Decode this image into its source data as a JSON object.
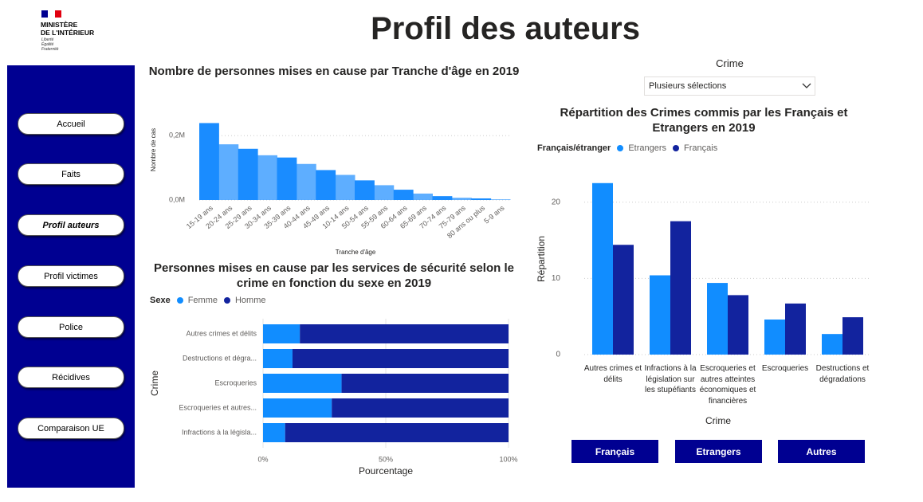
{
  "logo": {
    "line1": "MINISTÈRE",
    "line2": "DE L'INTÉRIEUR",
    "motto": [
      "Liberté",
      "Égalité",
      "Fraternité"
    ]
  },
  "header": {
    "title": "Profil des auteurs"
  },
  "nav": {
    "items": [
      "Accueil",
      "Faits",
      "Profil auteurs",
      "Profil victimes",
      "Police",
      "Récidives",
      "Comparaison UE"
    ],
    "active": 2
  },
  "slicer": {
    "label": "Crime",
    "value": "Plusieurs sélections"
  },
  "buttons": [
    "Français",
    "Etrangers",
    "Autres"
  ],
  "chart_data": [
    {
      "type": "area",
      "title": "Nombre de personnes mises en cause par Tranche d'âge en 2019",
      "x_label": "Tranche d'âge",
      "y_label": "Nombre de cas",
      "categories": [
        "15-19 ans",
        "20-24 ans",
        "25-29 ans",
        "30-34 ans",
        "35-39 ans",
        "40-44 ans",
        "45-49 ans",
        "10-14 ans",
        "50-54 ans",
        "55-59 ans",
        "60-64 ans",
        "65-69 ans",
        "70-74 ans",
        "75-79 ans",
        "80 ans ou plus",
        "5-9 ans"
      ],
      "values": [
        239000,
        173000,
        159000,
        139000,
        132000,
        112000,
        93000,
        78000,
        61000,
        46000,
        32000,
        20000,
        12000,
        7000,
        5000,
        2000
      ],
      "color": "#1a8cff",
      "ylim": [
        0,
        250000
      ],
      "yticks": [
        {
          "value": 0,
          "label": "0,0M"
        },
        {
          "value": 200000,
          "label": "0,2M"
        }
      ],
      "grid": true
    },
    {
      "type": "hbar_stacked",
      "title": "Personnes mises en cause par les services de sécurité selon le crime en fonction du sexe en 2019",
      "legend_title": "Sexe",
      "x_label": "Pourcentage",
      "y_label": "Crime",
      "categories": [
        "Autres crimes et délits",
        "Destructions et dégra...",
        "Escroqueries",
        "Escroqueries et autres...",
        "Infractions à la législa..."
      ],
      "series": [
        {
          "name": "Femme",
          "color": "#118dff",
          "values": [
            15,
            12,
            32,
            28,
            9
          ]
        },
        {
          "name": "Homme",
          "color": "#12239e",
          "values": [
            85,
            88,
            68,
            72,
            91
          ]
        }
      ],
      "xlim": [
        0,
        100
      ],
      "xticks": [
        {
          "value": 0,
          "label": "0%"
        },
        {
          "value": 50,
          "label": "50%"
        },
        {
          "value": 100,
          "label": "100%"
        }
      ],
      "grid": true
    },
    {
      "type": "grouped_bar",
      "title": "Répartition des Crimes commis par les Français et Etrangers en 2019",
      "legend_title": "Français/étranger",
      "x_label": "Crime",
      "y_label": "Répartition",
      "categories": [
        "Autres crimes et délits",
        "Infractions à la législation sur les stupéfiants",
        "Escroqueries et autres atteintes économiques et financières",
        "Escroqueries",
        "Destructions et dégradations"
      ],
      "series": [
        {
          "name": "Etrangers",
          "color": "#118dff",
          "values": [
            22.5,
            10.4,
            9.4,
            4.6,
            2.7
          ]
        },
        {
          "name": "Français",
          "color": "#12239e",
          "values": [
            14.4,
            17.5,
            7.8,
            6.7,
            4.9
          ]
        }
      ],
      "ylim": [
        0,
        23
      ],
      "yticks": [
        0,
        10,
        20
      ],
      "grid": true
    }
  ]
}
